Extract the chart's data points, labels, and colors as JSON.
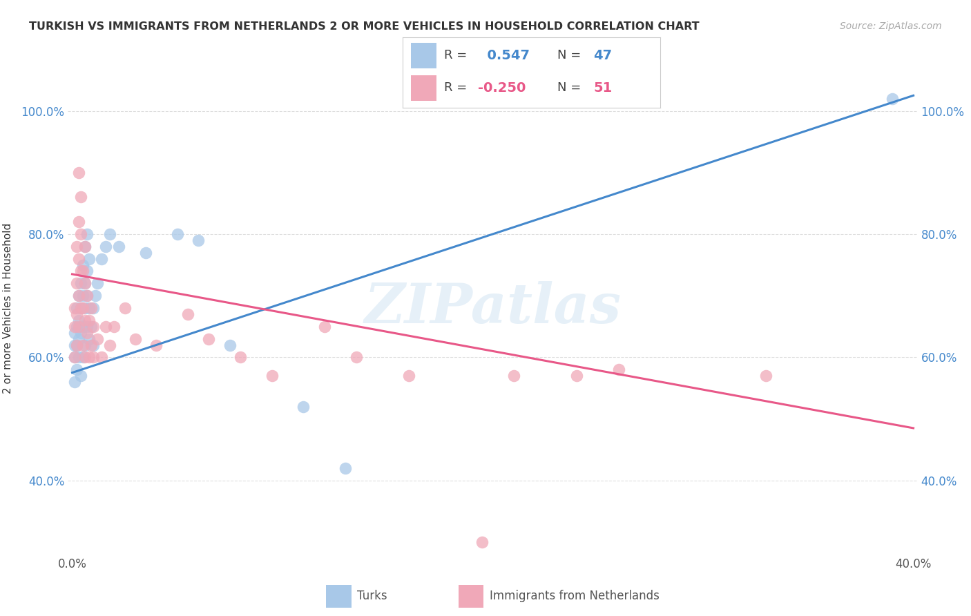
{
  "title": "TURKISH VS IMMIGRANTS FROM NETHERLANDS 2 OR MORE VEHICLES IN HOUSEHOLD CORRELATION CHART",
  "source": "Source: ZipAtlas.com",
  "ylabel": "2 or more Vehicles in Household",
  "xlim": [
    -0.002,
    0.402
  ],
  "ylim": [
    0.28,
    1.08
  ],
  "xtick_pos": [
    0.0,
    0.05,
    0.1,
    0.15,
    0.2,
    0.25,
    0.3,
    0.35,
    0.4
  ],
  "xtick_labels": [
    "0.0%",
    "",
    "",
    "",
    "",
    "",
    "",
    "",
    "40.0%"
  ],
  "ytick_pos": [
    0.4,
    0.6,
    0.8,
    1.0
  ],
  "ytick_labels": [
    "40.0%",
    "60.0%",
    "80.0%",
    "100.0%"
  ],
  "blue_R": 0.547,
  "blue_N": 47,
  "pink_R": -0.25,
  "pink_N": 51,
  "blue_scatter_color": "#a8c8e8",
  "pink_scatter_color": "#f0a8b8",
  "blue_line_color": "#4488cc",
  "pink_line_color": "#e85888",
  "blue_line_x0": 0.0,
  "blue_line_y0": 0.575,
  "blue_line_x1": 0.4,
  "blue_line_y1": 1.025,
  "pink_line_x0": 0.0,
  "pink_line_y0": 0.735,
  "pink_line_x1": 0.4,
  "pink_line_y1": 0.485,
  "grid_color": "#dddddd",
  "text_color": "#333333",
  "yaxis_color": "#4488cc",
  "watermark_text": "ZIPatlas",
  "turks_label": "Turks",
  "netherlands_label": "Immigrants from Netherlands",
  "blue_points": [
    [
      0.001,
      0.56
    ],
    [
      0.001,
      0.6
    ],
    [
      0.001,
      0.62
    ],
    [
      0.001,
      0.64
    ],
    [
      0.002,
      0.58
    ],
    [
      0.002,
      0.62
    ],
    [
      0.002,
      0.65
    ],
    [
      0.002,
      0.68
    ],
    [
      0.003,
      0.6
    ],
    [
      0.003,
      0.63
    ],
    [
      0.003,
      0.66
    ],
    [
      0.003,
      0.7
    ],
    [
      0.004,
      0.57
    ],
    [
      0.004,
      0.64
    ],
    [
      0.004,
      0.68
    ],
    [
      0.004,
      0.72
    ],
    [
      0.005,
      0.6
    ],
    [
      0.005,
      0.65
    ],
    [
      0.005,
      0.7
    ],
    [
      0.005,
      0.75
    ],
    [
      0.006,
      0.62
    ],
    [
      0.006,
      0.68
    ],
    [
      0.006,
      0.72
    ],
    [
      0.006,
      0.78
    ],
    [
      0.007,
      0.65
    ],
    [
      0.007,
      0.7
    ],
    [
      0.007,
      0.74
    ],
    [
      0.007,
      0.8
    ],
    [
      0.008,
      0.63
    ],
    [
      0.008,
      0.68
    ],
    [
      0.008,
      0.76
    ],
    [
      0.009,
      0.65
    ],
    [
      0.01,
      0.62
    ],
    [
      0.01,
      0.68
    ],
    [
      0.011,
      0.7
    ],
    [
      0.012,
      0.72
    ],
    [
      0.014,
      0.76
    ],
    [
      0.016,
      0.78
    ],
    [
      0.018,
      0.8
    ],
    [
      0.022,
      0.78
    ],
    [
      0.035,
      0.77
    ],
    [
      0.05,
      0.8
    ],
    [
      0.06,
      0.79
    ],
    [
      0.075,
      0.62
    ],
    [
      0.11,
      0.52
    ],
    [
      0.13,
      0.42
    ],
    [
      0.39,
      1.02
    ]
  ],
  "pink_points": [
    [
      0.001,
      0.6
    ],
    [
      0.001,
      0.65
    ],
    [
      0.001,
      0.68
    ],
    [
      0.002,
      0.62
    ],
    [
      0.002,
      0.67
    ],
    [
      0.002,
      0.72
    ],
    [
      0.002,
      0.78
    ],
    [
      0.003,
      0.65
    ],
    [
      0.003,
      0.7
    ],
    [
      0.003,
      0.76
    ],
    [
      0.003,
      0.82
    ],
    [
      0.003,
      0.9
    ],
    [
      0.004,
      0.68
    ],
    [
      0.004,
      0.74
    ],
    [
      0.004,
      0.8
    ],
    [
      0.004,
      0.86
    ],
    [
      0.005,
      0.62
    ],
    [
      0.005,
      0.68
    ],
    [
      0.005,
      0.74
    ],
    [
      0.006,
      0.6
    ],
    [
      0.006,
      0.66
    ],
    [
      0.006,
      0.72
    ],
    [
      0.006,
      0.78
    ],
    [
      0.007,
      0.64
    ],
    [
      0.007,
      0.7
    ],
    [
      0.008,
      0.6
    ],
    [
      0.008,
      0.66
    ],
    [
      0.009,
      0.62
    ],
    [
      0.009,
      0.68
    ],
    [
      0.01,
      0.6
    ],
    [
      0.01,
      0.65
    ],
    [
      0.012,
      0.63
    ],
    [
      0.014,
      0.6
    ],
    [
      0.016,
      0.65
    ],
    [
      0.018,
      0.62
    ],
    [
      0.02,
      0.65
    ],
    [
      0.025,
      0.68
    ],
    [
      0.03,
      0.63
    ],
    [
      0.04,
      0.62
    ],
    [
      0.055,
      0.67
    ],
    [
      0.065,
      0.63
    ],
    [
      0.08,
      0.6
    ],
    [
      0.095,
      0.57
    ],
    [
      0.12,
      0.65
    ],
    [
      0.135,
      0.6
    ],
    [
      0.16,
      0.57
    ],
    [
      0.21,
      0.57
    ],
    [
      0.26,
      0.58
    ],
    [
      0.33,
      0.57
    ],
    [
      0.195,
      0.3
    ],
    [
      0.24,
      0.57
    ]
  ]
}
